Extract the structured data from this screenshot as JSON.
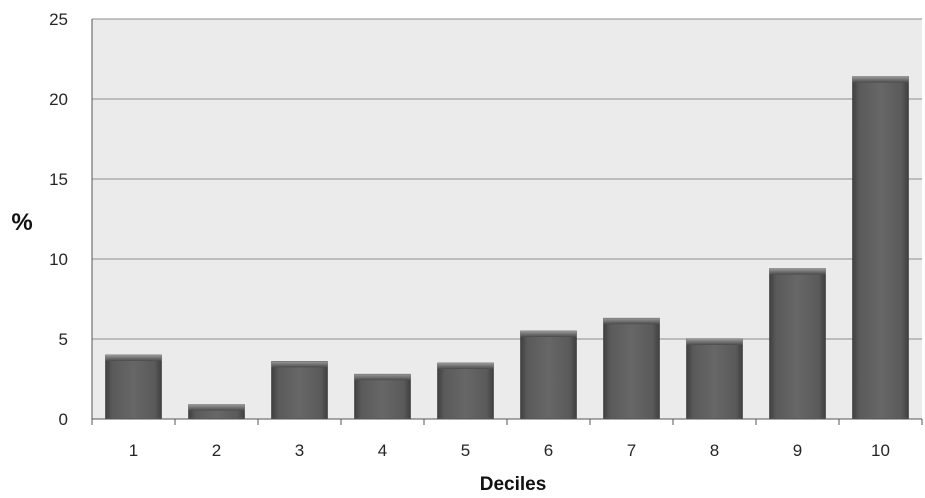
{
  "chart_data": {
    "type": "bar",
    "title": "",
    "xlabel": "Deciles",
    "ylabel": "%",
    "categories": [
      "1",
      "2",
      "3",
      "4",
      "5",
      "6",
      "7",
      "8",
      "9",
      "10"
    ],
    "series": [
      {
        "values": [
          4.0,
          0.9,
          3.6,
          2.8,
          3.5,
          5.5,
          6.3,
          5.0,
          9.4,
          21.4
        ]
      }
    ],
    "ylim": [
      0,
      25
    ],
    "yticks": [
      0,
      5,
      10,
      15,
      20,
      25
    ],
    "grid": true,
    "legend": "none",
    "colors": {
      "bar": "#5b5b5b",
      "bar_top": "#8a8a8a",
      "plot_background": "#ebebeb",
      "gridline": "#8c8c8c",
      "axis": "#555555"
    }
  }
}
